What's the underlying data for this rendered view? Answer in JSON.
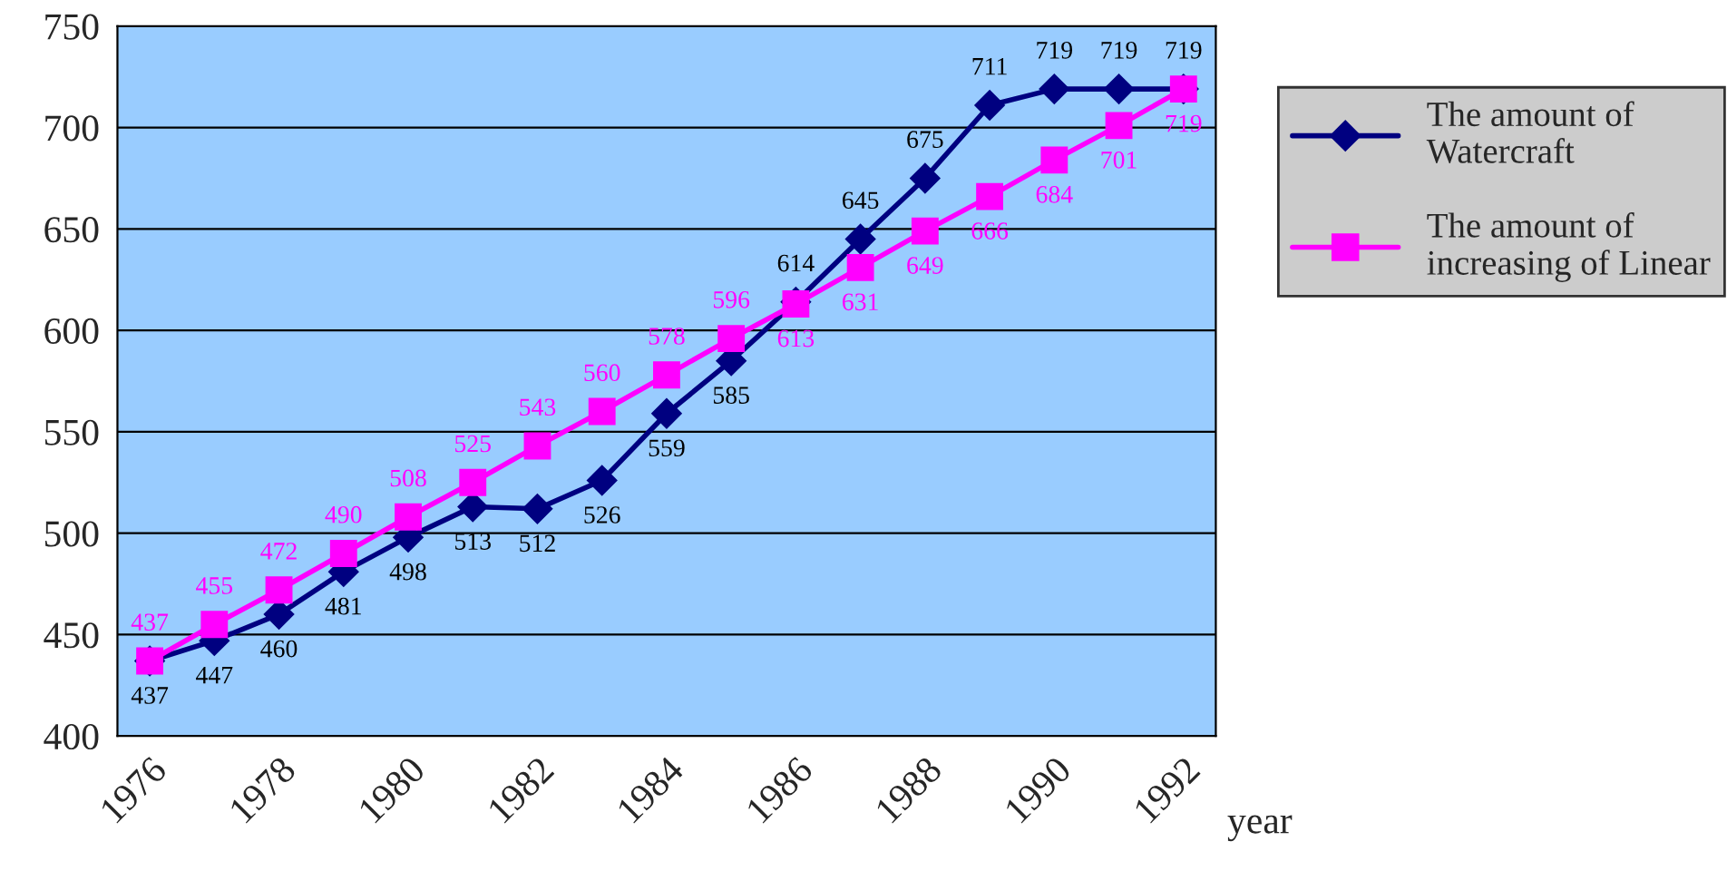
{
  "chart_data": {
    "type": "line",
    "xlabel": "year",
    "x": [
      1976,
      1977,
      1978,
      1979,
      1980,
      1981,
      1982,
      1983,
      1984,
      1985,
      1986,
      1987,
      1988,
      1989,
      1990,
      1991,
      1992
    ],
    "xlim": [
      1975.5,
      1992.5
    ],
    "xticks": [
      1976,
      1978,
      1980,
      1982,
      1984,
      1986,
      1988,
      1990,
      1992
    ],
    "ylim": [
      400,
      750
    ],
    "yticks": [
      400,
      450,
      500,
      550,
      600,
      650,
      700,
      750
    ],
    "grid": "y",
    "legend": "right",
    "data_labels": true,
    "line_style": "solid",
    "series": [
      {
        "name": "The amount of Watercraft",
        "color": "#000080",
        "marker": "diamond",
        "values": [
          437,
          447,
          460,
          481,
          498,
          513,
          512,
          526,
          559,
          585,
          614,
          645,
          675,
          711,
          719,
          719,
          719
        ]
      },
      {
        "name": "The amount of increasing of Linear",
        "color": "#ff00ff",
        "marker": "square",
        "values": [
          437,
          455,
          472,
          490,
          508,
          525,
          543,
          560,
          578,
          596,
          613,
          631,
          649,
          666,
          684,
          701,
          719
        ]
      }
    ]
  }
}
